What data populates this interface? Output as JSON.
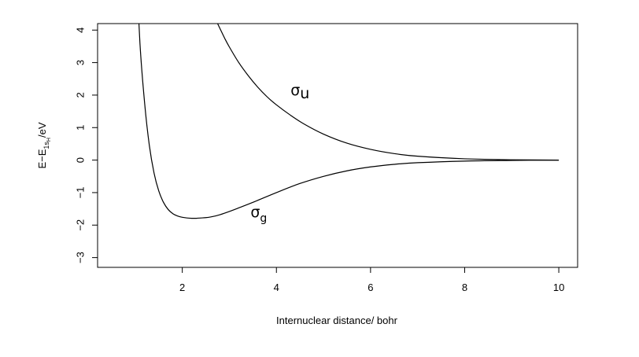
{
  "chart_data": {
    "type": "line",
    "xlabel": "Internuclear distance/  bohr",
    "ylabel": {
      "base": "E−E",
      "subscript": "1s",
      "subsubscript": "H",
      "suffix": "/eV"
    },
    "xlim": [
      0.2,
      10.4
    ],
    "ylim": [
      -3.3,
      4.2
    ],
    "x_ticks": [
      2,
      4,
      6,
      8,
      10
    ],
    "y_ticks": [
      -3,
      -2,
      -1,
      0,
      1,
      2,
      3,
      4
    ],
    "x_tick_labels": [
      "2",
      "4",
      "6",
      "8",
      "10"
    ],
    "y_tick_labels": [
      "−3",
      "−2",
      "−1",
      "0",
      "1",
      "2",
      "3",
      "4"
    ],
    "grid": false,
    "legend": "none",
    "series": [
      {
        "label_base": "σ",
        "label_sub": "g",
        "label_at": [
          3.45,
          -1.75
        ],
        "x": [
          1.0,
          1.1,
          1.2,
          1.3,
          1.4,
          1.5,
          1.6,
          1.7,
          1.8,
          1.9,
          2.0,
          2.1,
          2.2,
          2.3,
          2.4,
          2.5,
          2.6,
          2.7,
          2.8,
          3.0,
          3.2,
          3.5,
          4.0,
          4.5,
          5.0,
          5.5,
          6.0,
          6.5,
          7.0,
          8.0,
          9.0,
          10.0
        ],
        "values": [
          6.6,
          3.6,
          1.75,
          0.45,
          -0.4,
          -0.95,
          -1.3,
          -1.52,
          -1.65,
          -1.72,
          -1.76,
          -1.78,
          -1.79,
          -1.79,
          -1.78,
          -1.77,
          -1.75,
          -1.72,
          -1.68,
          -1.58,
          -1.47,
          -1.3,
          -1.0,
          -0.72,
          -0.5,
          -0.33,
          -0.21,
          -0.13,
          -0.08,
          -0.03,
          -0.01,
          0.0
        ]
      },
      {
        "label_base": "σ",
        "label_sub": "u",
        "label_at": [
          4.3,
          2.0
        ],
        "x": [
          2.75,
          2.8,
          2.9,
          3.0,
          3.2,
          3.4,
          3.6,
          3.8,
          4.0,
          4.3,
          4.6,
          5.0,
          5.5,
          6.0,
          6.5,
          7.0,
          8.0,
          9.0,
          10.0
        ],
        "values": [
          4.2,
          4.05,
          3.75,
          3.48,
          3.0,
          2.6,
          2.25,
          1.95,
          1.7,
          1.38,
          1.1,
          0.8,
          0.52,
          0.33,
          0.2,
          0.12,
          0.04,
          0.01,
          0.0
        ]
      }
    ]
  }
}
